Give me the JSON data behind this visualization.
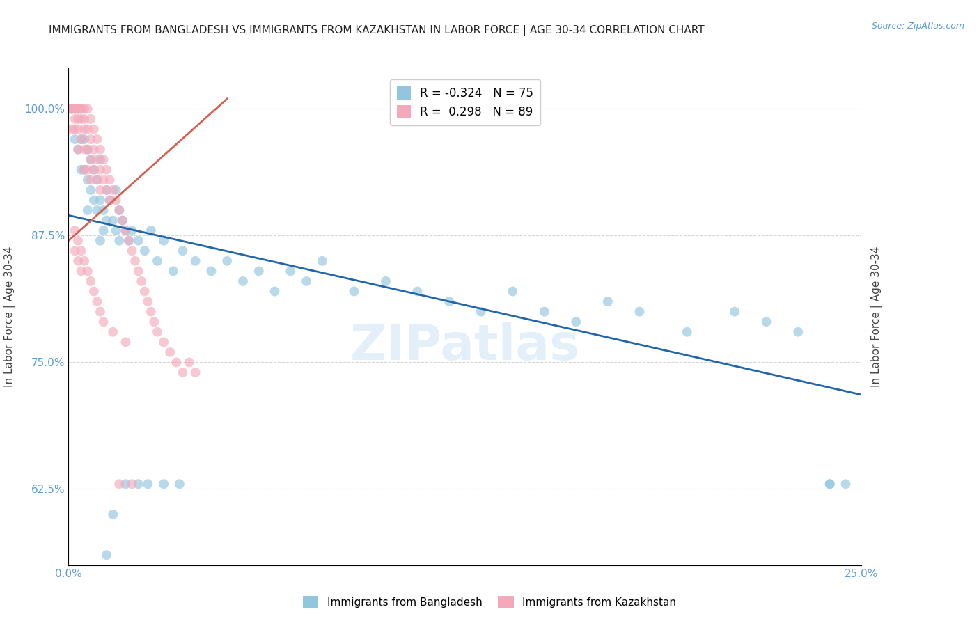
{
  "title": "IMMIGRANTS FROM BANGLADESH VS IMMIGRANTS FROM KAZAKHSTAN IN LABOR FORCE | AGE 30-34 CORRELATION CHART",
  "source": "Source: ZipAtlas.com",
  "ylabel": "In Labor Force | Age 30-34",
  "watermark": "ZIPatlas",
  "xlim": [
    0.0,
    0.25
  ],
  "ylim": [
    0.55,
    1.04
  ],
  "xticks": [
    0.0,
    0.05,
    0.1,
    0.15,
    0.2,
    0.25
  ],
  "xticklabels": [
    "0.0%",
    "",
    "",
    "",
    "",
    "25.0%"
  ],
  "yticks": [
    0.625,
    0.75,
    0.875,
    1.0
  ],
  "yticklabels": [
    "62.5%",
    "75.0%",
    "87.5%",
    "100.0%"
  ],
  "bangladesh_R": -0.324,
  "bangladesh_N": 75,
  "kazakhstan_R": 0.298,
  "kazakhstan_N": 89,
  "bangladesh_color": "#92c5de",
  "kazakhstan_color": "#f4a9bb",
  "bangladesh_trend_color": "#2166ac",
  "kazakhstan_trend_color": "#d6604d",
  "bangladesh_trend_x0": 0.0,
  "bangladesh_trend_y0": 0.895,
  "bangladesh_trend_x1": 0.25,
  "bangladesh_trend_y1": 0.718,
  "kazakhstan_trend_x0": 0.0,
  "kazakhstan_trend_y0": 0.87,
  "kazakhstan_trend_x1": 0.05,
  "kazakhstan_trend_y1": 1.01,
  "background_color": "#ffffff",
  "grid_color": "#bbbbbb",
  "tick_color": "#5b9bd5",
  "title_fontsize": 11,
  "axis_label_fontsize": 11,
  "bangladesh_x": [
    0.002,
    0.002,
    0.003,
    0.003,
    0.004,
    0.004,
    0.004,
    0.005,
    0.005,
    0.006,
    0.006,
    0.006,
    0.007,
    0.007,
    0.008,
    0.008,
    0.009,
    0.009,
    0.01,
    0.01,
    0.011,
    0.011,
    0.012,
    0.012,
    0.013,
    0.014,
    0.015,
    0.015,
    0.016,
    0.016,
    0.017,
    0.018,
    0.019,
    0.02,
    0.022,
    0.024,
    0.026,
    0.028,
    0.03,
    0.033,
    0.036,
    0.04,
    0.045,
    0.05,
    0.055,
    0.06,
    0.065,
    0.07,
    0.075,
    0.08,
    0.09,
    0.1,
    0.11,
    0.12,
    0.13,
    0.14,
    0.15,
    0.16,
    0.17,
    0.18,
    0.195,
    0.21,
    0.22,
    0.23,
    0.24,
    0.24,
    0.245,
    0.01,
    0.012,
    0.014,
    0.018,
    0.022,
    0.025,
    0.03,
    0.035
  ],
  "bangladesh_y": [
    1.0,
    0.97,
    1.0,
    0.96,
    1.0,
    0.97,
    0.94,
    0.97,
    0.94,
    0.96,
    0.93,
    0.9,
    0.95,
    0.92,
    0.94,
    0.91,
    0.93,
    0.9,
    0.95,
    0.91,
    0.9,
    0.88,
    0.92,
    0.89,
    0.91,
    0.89,
    0.92,
    0.88,
    0.9,
    0.87,
    0.89,
    0.88,
    0.87,
    0.88,
    0.87,
    0.86,
    0.88,
    0.85,
    0.87,
    0.84,
    0.86,
    0.85,
    0.84,
    0.85,
    0.83,
    0.84,
    0.82,
    0.84,
    0.83,
    0.85,
    0.82,
    0.83,
    0.82,
    0.81,
    0.8,
    0.82,
    0.8,
    0.79,
    0.81,
    0.8,
    0.78,
    0.8,
    0.79,
    0.78,
    0.63,
    0.63,
    0.63,
    0.87,
    0.56,
    0.6,
    0.63,
    0.63,
    0.63,
    0.63,
    0.63
  ],
  "kazakhstan_x": [
    0.001,
    0.001,
    0.001,
    0.001,
    0.001,
    0.001,
    0.001,
    0.001,
    0.002,
    0.002,
    0.002,
    0.002,
    0.002,
    0.003,
    0.003,
    0.003,
    0.003,
    0.003,
    0.003,
    0.004,
    0.004,
    0.004,
    0.004,
    0.005,
    0.005,
    0.005,
    0.005,
    0.005,
    0.006,
    0.006,
    0.006,
    0.006,
    0.007,
    0.007,
    0.007,
    0.007,
    0.008,
    0.008,
    0.008,
    0.009,
    0.009,
    0.009,
    0.01,
    0.01,
    0.01,
    0.011,
    0.011,
    0.012,
    0.012,
    0.013,
    0.013,
    0.014,
    0.015,
    0.016,
    0.017,
    0.018,
    0.019,
    0.02,
    0.021,
    0.022,
    0.023,
    0.024,
    0.025,
    0.026,
    0.027,
    0.028,
    0.03,
    0.032,
    0.034,
    0.036,
    0.038,
    0.04,
    0.002,
    0.002,
    0.003,
    0.003,
    0.004,
    0.004,
    0.005,
    0.006,
    0.007,
    0.008,
    0.009,
    0.01,
    0.011,
    0.014,
    0.016,
    0.018,
    0.02
  ],
  "kazakhstan_y": [
    1.0,
    1.0,
    1.0,
    1.0,
    1.0,
    1.0,
    1.0,
    0.98,
    1.0,
    1.0,
    1.0,
    0.99,
    0.98,
    1.0,
    1.0,
    1.0,
    0.99,
    0.98,
    0.96,
    1.0,
    1.0,
    0.99,
    0.97,
    1.0,
    0.99,
    0.98,
    0.96,
    0.94,
    1.0,
    0.98,
    0.96,
    0.94,
    0.99,
    0.97,
    0.95,
    0.93,
    0.98,
    0.96,
    0.94,
    0.97,
    0.95,
    0.93,
    0.96,
    0.94,
    0.92,
    0.95,
    0.93,
    0.94,
    0.92,
    0.93,
    0.91,
    0.92,
    0.91,
    0.9,
    0.89,
    0.88,
    0.87,
    0.86,
    0.85,
    0.84,
    0.83,
    0.82,
    0.81,
    0.8,
    0.79,
    0.78,
    0.77,
    0.76,
    0.75,
    0.74,
    0.75,
    0.74,
    0.88,
    0.86,
    0.87,
    0.85,
    0.86,
    0.84,
    0.85,
    0.84,
    0.83,
    0.82,
    0.81,
    0.8,
    0.79,
    0.78,
    0.63,
    0.77,
    0.63
  ]
}
